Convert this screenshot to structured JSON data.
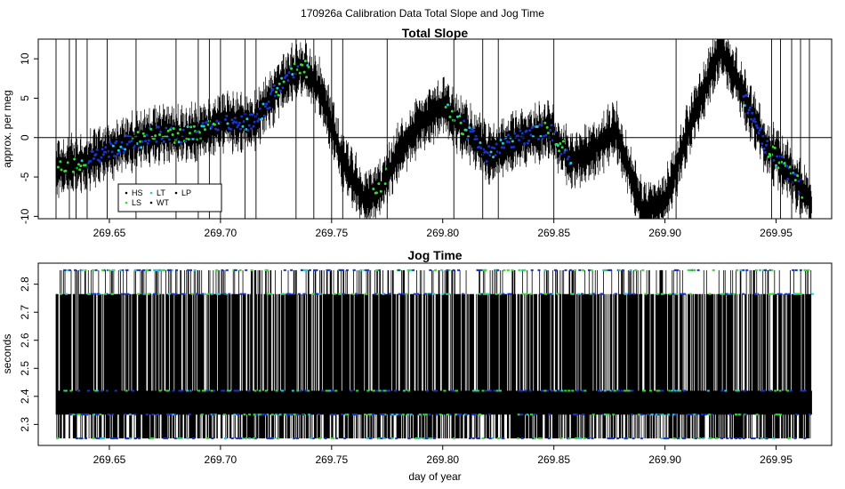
{
  "figure": {
    "suptitle": "170926a   Calibration Data Total Slope and Jog Time",
    "xlabel": "day of year"
  },
  "legend": {
    "entries": [
      {
        "label": "HS",
        "color": "#000000"
      },
      {
        "label": "LS",
        "color": "#22c55e"
      },
      {
        "label": "LT",
        "color": "#22d3ee"
      },
      {
        "label": "WT",
        "color": "#000000"
      },
      {
        "label": "LP",
        "color": "#000000"
      }
    ]
  },
  "colors": {
    "black": "#000000",
    "green": "#33dd33",
    "blue": "#1a33c8",
    "cyan": "#22ccdd"
  },
  "chart_data": [
    {
      "type": "line",
      "title": "Total Slope",
      "xlabel": "",
      "ylabel": "approx. per meg",
      "xlim": [
        269.618,
        269.975
      ],
      "ylim": [
        -10.3,
        12.5
      ],
      "xticks": [
        269.65,
        269.7,
        269.75,
        269.8,
        269.85,
        269.9,
        269.95
      ],
      "xtick_labels": [
        "269.65",
        "269.70",
        "269.75",
        "269.80",
        "269.85",
        "269.90",
        "269.95"
      ],
      "yticks": [
        -10,
        -5,
        0,
        5,
        10
      ],
      "ytick_labels": [
        "-10",
        "-5",
        "0",
        "5",
        "10"
      ],
      "hline": 0,
      "legend_position": "bottom-left",
      "trend": [
        {
          "x": 269.626,
          "y": -4.0
        },
        {
          "x": 269.64,
          "y": -3.0
        },
        {
          "x": 269.655,
          "y": -1.0
        },
        {
          "x": 269.67,
          "y": 0.3
        },
        {
          "x": 269.69,
          "y": 0.5
        },
        {
          "x": 269.702,
          "y": 2.0
        },
        {
          "x": 269.715,
          "y": 2.0
        },
        {
          "x": 269.728,
          "y": 7.0
        },
        {
          "x": 269.737,
          "y": 9.2
        },
        {
          "x": 269.745,
          "y": 6.0
        },
        {
          "x": 269.755,
          "y": -3.0
        },
        {
          "x": 269.765,
          "y": -8.0
        },
        {
          "x": 269.772,
          "y": -6.5
        },
        {
          "x": 269.78,
          "y": -2.0
        },
        {
          "x": 269.79,
          "y": 2.0
        },
        {
          "x": 269.8,
          "y": 4.0
        },
        {
          "x": 269.81,
          "y": 1.0
        },
        {
          "x": 269.82,
          "y": -2.0
        },
        {
          "x": 269.835,
          "y": 0.0
        },
        {
          "x": 269.848,
          "y": 1.0
        },
        {
          "x": 269.858,
          "y": -3.0
        },
        {
          "x": 269.866,
          "y": -2.0
        },
        {
          "x": 269.878,
          "y": 1.0
        },
        {
          "x": 269.89,
          "y": -9.5
        },
        {
          "x": 269.9,
          "y": -8.0
        },
        {
          "x": 269.912,
          "y": 2.0
        },
        {
          "x": 269.925,
          "y": 11.5
        },
        {
          "x": 269.933,
          "y": 7.0
        },
        {
          "x": 269.945,
          "y": -1.0
        },
        {
          "x": 269.958,
          "y": -5.0
        },
        {
          "x": 269.966,
          "y": -8.5
        }
      ],
      "spikes_x": [
        269.626,
        269.632,
        269.635,
        269.64,
        269.649,
        269.662,
        269.68,
        269.69,
        269.695,
        269.7,
        269.711,
        269.716,
        269.734,
        269.742,
        269.75,
        269.755,
        269.775,
        269.805,
        269.818,
        269.825,
        269.85,
        269.905,
        269.948,
        269.952,
        269.957,
        269.961,
        269.965
      ]
    },
    {
      "type": "line",
      "title": "Jog Time",
      "xlabel": "day of year",
      "ylabel": "seconds",
      "xlim": [
        269.618,
        269.975
      ],
      "ylim": [
        2.225,
        2.875
      ],
      "xticks": [
        269.65,
        269.7,
        269.75,
        269.8,
        269.85,
        269.9,
        269.95
      ],
      "xtick_labels": [
        "269.65",
        "269.70",
        "269.75",
        "269.80",
        "269.85",
        "269.90",
        "269.95"
      ],
      "yticks": [
        2.3,
        2.4,
        2.5,
        2.6,
        2.7,
        2.8
      ],
      "ytick_labels": [
        "2.3",
        "2.4",
        "2.5",
        "2.6",
        "2.7",
        "2.8"
      ],
      "levels": [
        2.25,
        2.335,
        2.42,
        2.765,
        2.85
      ],
      "band": [
        2.335,
        2.42
      ],
      "dense_band_x": [
        269.778,
        269.965
      ],
      "x_range": [
        269.626,
        269.966
      ]
    }
  ]
}
